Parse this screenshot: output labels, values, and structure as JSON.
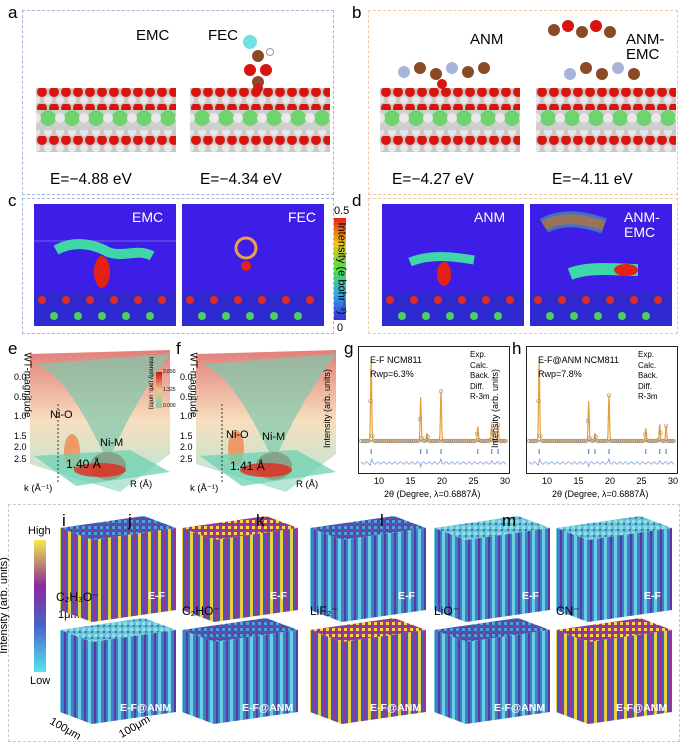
{
  "panels": {
    "a": {
      "label": "a",
      "mols": [
        "EMC",
        "FEC"
      ],
      "energies": [
        "E=−4.88 eV",
        "E=−4.34 eV"
      ]
    },
    "b": {
      "label": "b",
      "mols": [
        "ANM",
        "ANM-\nEMC"
      ],
      "energies": [
        "E=−4.27 eV",
        "E=−4.11 eV"
      ]
    },
    "c": {
      "label": "c",
      "mols": [
        "EMC",
        "FEC"
      ]
    },
    "d": {
      "label": "d",
      "mols": [
        "ANM",
        "ANM-\nEMC"
      ]
    },
    "colorbar_cd": {
      "top": "0.5",
      "bottom": "0",
      "title": "Intensity (e bohr⁻³)"
    },
    "e": {
      "label": "e",
      "zlabel": "WT-magnitude",
      "peak1": "Ni-O",
      "peak2": "Ni-M",
      "dist": "1.40 Å",
      "cb_title": "Intensity (arb. units)",
      "cb_ticks": [
        "2.650",
        "1.325",
        "0.000"
      ],
      "zticks": [
        "0.0",
        "0.5",
        "1.0",
        "1.5",
        "2.0",
        "2.5"
      ],
      "xlabel": "k (Å⁻¹)",
      "ylabel": "R (Å)",
      "kticks": [
        "5",
        "10",
        "15"
      ],
      "rticks": [
        "1",
        "2",
        "3",
        "4",
        "5"
      ]
    },
    "f": {
      "label": "f",
      "zlabel": "WT-magnitude",
      "peak1": "Ni-O",
      "peak2": "Ni-M",
      "dist": "1.41 Å",
      "zticks": [
        "0.0",
        "0.5",
        "1.0",
        "1.5",
        "2.0",
        "2.5"
      ],
      "xlabel": "k (Å⁻¹)",
      "ylabel": "R (Å)",
      "kticks": [
        "5",
        "10",
        "15"
      ],
      "rticks": [
        "1",
        "2",
        "3",
        "4",
        "5"
      ]
    },
    "g": {
      "label": "g",
      "title": "E-F NCM811",
      "rwp": "Rwp=6.3%"
    },
    "h": {
      "label": "h",
      "title": "E-F@ANM NCM811",
      "rwp": "Rwp=7.8%"
    },
    "xrd_common": {
      "ylabel": "Intensity (arb. units)",
      "xlabel": "2θ (Degree, λ=0.6887Å)",
      "xticks": [
        "10",
        "15",
        "20",
        "25",
        "30"
      ],
      "legend": [
        "Exp.",
        "Calc.",
        "Back.",
        "Diff.",
        "R-3m"
      ]
    },
    "tof": {
      "panels": [
        {
          "label": "i",
          "ion": "C₂H₃O⁻",
          "top": "E-F",
          "bottom": "E-F@ANM"
        },
        {
          "label": "j",
          "ion": "C₂HO⁻",
          "top": "E-F",
          "bottom": "E-F@ANM"
        },
        {
          "label": "k",
          "ion": "LiF₂⁻",
          "top": "E-F",
          "bottom": "E-F@ANM"
        },
        {
          "label": "l",
          "ion": "LiO⁻",
          "top": "E-F",
          "bottom": "E-F@ANM"
        },
        {
          "label": "m",
          "ion": "CN⁻",
          "top": "E-F",
          "bottom": "E-F@ANM"
        }
      ],
      "cb_high": "High",
      "cb_low": "Low",
      "cb_title": "Intensity (arb. units)",
      "depth": "1μm",
      "scale_x": "100μm",
      "scale_y": "100μm"
    }
  },
  "chart_data": [
    {
      "type": "line",
      "title": "E-F NCM811",
      "xlabel": "2θ (Degree, λ=0.6887Å)",
      "ylabel": "Intensity (arb. units)",
      "xlim": [
        7,
        30
      ],
      "annotation": "Rwp=6.3%",
      "peaks_x": [
        8.6,
        16.4,
        17.4,
        19.6,
        25.4,
        27.6,
        28.6
      ],
      "peaks_rel": [
        1.0,
        0.55,
        0.1,
        0.62,
        0.18,
        0.22,
        0.2
      ],
      "series": [
        {
          "name": "Exp."
        },
        {
          "name": "Calc."
        },
        {
          "name": "Back."
        },
        {
          "name": "Diff."
        },
        {
          "name": "R-3m"
        }
      ]
    },
    {
      "type": "line",
      "title": "E-F@ANM NCM811",
      "xlabel": "2θ (Degree, λ=0.6887Å)",
      "ylabel": "Intensity (arb. units)",
      "xlim": [
        7,
        30
      ],
      "annotation": "Rwp=7.8%",
      "peaks_x": [
        8.6,
        16.4,
        17.4,
        19.6,
        25.4,
        27.6,
        28.6
      ],
      "peaks_rel": [
        1.0,
        0.5,
        0.1,
        0.57,
        0.16,
        0.21,
        0.19
      ],
      "series": [
        {
          "name": "Exp."
        },
        {
          "name": "Calc."
        },
        {
          "name": "Back."
        },
        {
          "name": "Diff."
        },
        {
          "name": "R-3m"
        }
      ]
    }
  ]
}
